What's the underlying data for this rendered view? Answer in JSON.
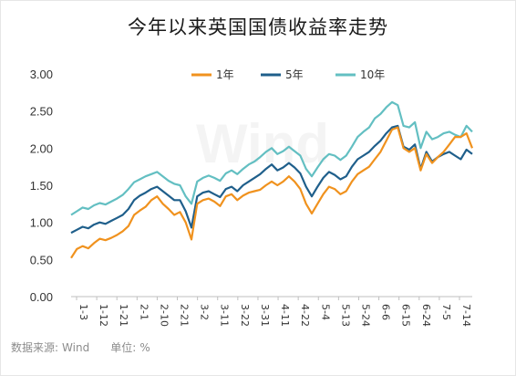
{
  "title": "今年以来英国国债收益率走势",
  "watermark": "Wind",
  "source": {
    "label": "数据来源:",
    "value": "Wind",
    "unit_label": "单位:",
    "unit": "%"
  },
  "colors": {
    "y1": "#f0921e",
    "y5": "#1f5f8b",
    "y10": "#63bfc2"
  },
  "chart_data": {
    "type": "line",
    "title": "今年以来英国国债收益率走势",
    "xlabel": "",
    "ylabel": "",
    "ylim": [
      0,
      3.0
    ],
    "yticks": [
      "0.00",
      "0.50",
      "1.00",
      "1.50",
      "2.00",
      "2.50",
      "3.00"
    ],
    "grid": false,
    "legend_position": "top-center",
    "x_tick_labels": [
      "1-3",
      "1-12",
      "1-21",
      "2-1",
      "2-10",
      "2-21",
      "3-2",
      "3-11",
      "3-22",
      "3-31",
      "4-11",
      "4-22",
      "5-4",
      "5-13",
      "5-24",
      "6-6",
      "6-15",
      "6-24",
      "7-5",
      "7-14"
    ],
    "series": [
      {
        "name": "1年",
        "values": [
          0.52,
          0.64,
          0.68,
          0.65,
          0.72,
          0.78,
          0.76,
          0.79,
          0.83,
          0.88,
          0.95,
          1.1,
          1.16,
          1.21,
          1.3,
          1.35,
          1.25,
          1.18,
          1.1,
          1.14,
          1.0,
          0.77,
          1.25,
          1.3,
          1.32,
          1.28,
          1.22,
          1.35,
          1.38,
          1.3,
          1.36,
          1.4,
          1.42,
          1.44,
          1.5,
          1.55,
          1.5,
          1.55,
          1.62,
          1.55,
          1.45,
          1.25,
          1.12,
          1.25,
          1.38,
          1.48,
          1.45,
          1.38,
          1.42,
          1.55,
          1.65,
          1.7,
          1.75,
          1.85,
          1.95,
          2.1,
          2.25,
          2.28,
          2.0,
          1.95,
          2.0,
          1.7,
          1.92,
          1.8,
          1.88,
          1.95,
          2.05,
          2.15,
          2.15,
          2.2,
          2.0
        ]
      },
      {
        "name": "5年",
        "values": [
          0.86,
          0.9,
          0.94,
          0.92,
          0.97,
          1.0,
          0.98,
          1.02,
          1.06,
          1.1,
          1.18,
          1.3,
          1.36,
          1.4,
          1.45,
          1.48,
          1.42,
          1.36,
          1.3,
          1.3,
          1.15,
          0.93,
          1.35,
          1.4,
          1.42,
          1.38,
          1.34,
          1.45,
          1.48,
          1.42,
          1.5,
          1.55,
          1.6,
          1.65,
          1.72,
          1.78,
          1.7,
          1.74,
          1.8,
          1.74,
          1.66,
          1.48,
          1.35,
          1.48,
          1.6,
          1.68,
          1.64,
          1.58,
          1.62,
          1.75,
          1.85,
          1.9,
          1.95,
          2.03,
          2.1,
          2.2,
          2.28,
          2.3,
          2.02,
          1.98,
          2.05,
          1.72,
          1.95,
          1.82,
          1.88,
          1.92,
          1.95,
          1.9,
          1.85,
          1.98,
          1.92
        ]
      },
      {
        "name": "10年",
        "values": [
          1.1,
          1.15,
          1.2,
          1.18,
          1.23,
          1.26,
          1.24,
          1.28,
          1.32,
          1.37,
          1.45,
          1.54,
          1.58,
          1.62,
          1.65,
          1.68,
          1.62,
          1.56,
          1.52,
          1.5,
          1.35,
          1.25,
          1.55,
          1.6,
          1.63,
          1.6,
          1.56,
          1.66,
          1.7,
          1.65,
          1.72,
          1.78,
          1.82,
          1.88,
          1.95,
          2.0,
          1.92,
          1.96,
          2.02,
          1.96,
          1.9,
          1.72,
          1.62,
          1.74,
          1.85,
          1.92,
          1.9,
          1.84,
          1.9,
          2.02,
          2.15,
          2.22,
          2.28,
          2.4,
          2.46,
          2.55,
          2.62,
          2.58,
          2.3,
          2.28,
          2.35,
          2.0,
          2.22,
          2.12,
          2.15,
          2.2,
          2.22,
          2.18,
          2.15,
          2.3,
          2.22
        ]
      }
    ]
  }
}
